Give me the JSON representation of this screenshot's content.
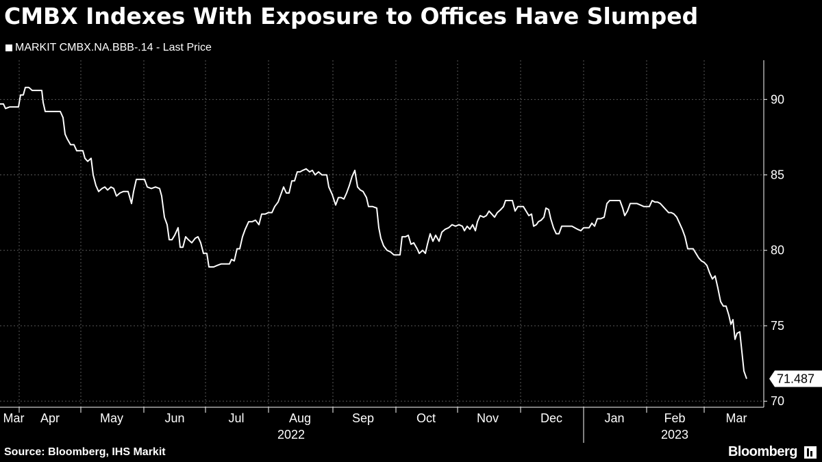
{
  "title": "CMBX Indexes With Exposure to Offices Have Slumped",
  "legend": {
    "label": "MARKIT CMBX.NA.BBB-.14 - Last Price"
  },
  "source": "Source: Bloomberg, IHS Markit",
  "brand": "Bloomberg",
  "colors": {
    "background": "#000000",
    "line": "#ffffff",
    "grid": "#5a5a5a"
  },
  "chart_data": {
    "type": "line",
    "title": "CMBX Indexes With Exposure to Offices Have Slumped",
    "series_name": "MARKIT CMBX.NA.BBB-.14 - Last Price",
    "ylim": [
      69.6,
      92.6
    ],
    "yticks": [
      70,
      75,
      80,
      85,
      90
    ],
    "ytick_labels": [
      "70",
      "75",
      "80",
      "85",
      "90"
    ],
    "xlim": [
      0,
      1115
    ],
    "grid": true,
    "last_value": 71.487,
    "last_value_label": "71.487",
    "month_labels": [
      {
        "label": "Mar",
        "x": 20
      },
      {
        "label": "Apr",
        "x": 73
      },
      {
        "label": "May",
        "x": 163
      },
      {
        "label": "Jun",
        "x": 255
      },
      {
        "label": "Jul",
        "x": 345
      },
      {
        "label": "Aug",
        "x": 438
      },
      {
        "label": "Sep",
        "x": 530
      },
      {
        "label": "Oct",
        "x": 622
      },
      {
        "label": "Nov",
        "x": 712
      },
      {
        "label": "Dec",
        "x": 805
      },
      {
        "label": "Jan",
        "x": 897
      },
      {
        "label": "Feb",
        "x": 985
      },
      {
        "label": "Mar",
        "x": 1075
      }
    ],
    "year_labels": [
      {
        "label": "2022",
        "x": 425
      },
      {
        "label": "2023",
        "x": 985
      }
    ],
    "month_boundaries": [
      28,
      118,
      210,
      300,
      392,
      486,
      578,
      668,
      760,
      852,
      944,
      1028
    ],
    "year_boundary": 852,
    "points": [
      [
        0,
        89.7
      ],
      [
        5,
        89.7
      ],
      [
        8,
        89.4
      ],
      [
        14,
        89.5
      ],
      [
        22,
        89.5
      ],
      [
        27,
        89.5
      ],
      [
        30,
        90.3
      ],
      [
        34,
        90.3
      ],
      [
        37,
        90.8
      ],
      [
        42,
        90.8
      ],
      [
        47,
        90.6
      ],
      [
        55,
        90.6
      ],
      [
        61,
        90.6
      ],
      [
        63,
        89.8
      ],
      [
        66,
        89.2
      ],
      [
        70,
        89.2
      ],
      [
        80,
        89.2
      ],
      [
        88,
        89.2
      ],
      [
        92,
        88.8
      ],
      [
        95,
        87.7
      ],
      [
        98,
        87.4
      ],
      [
        103,
        87.0
      ],
      [
        108,
        87.0
      ],
      [
        112,
        86.6
      ],
      [
        116,
        86.6
      ],
      [
        121,
        86.6
      ],
      [
        124,
        86.1
      ],
      [
        128,
        85.9
      ],
      [
        133,
        86.1
      ],
      [
        136,
        85.0
      ],
      [
        140,
        84.3
      ],
      [
        144,
        83.9
      ],
      [
        149,
        84.1
      ],
      [
        153,
        84.2
      ],
      [
        157,
        84.0
      ],
      [
        162,
        84.2
      ],
      [
        166,
        84.1
      ],
      [
        170,
        83.6
      ],
      [
        175,
        83.8
      ],
      [
        180,
        83.9
      ],
      [
        187,
        83.9
      ],
      [
        192,
        83.1
      ],
      [
        195,
        83.9
      ],
      [
        199,
        84.7
      ],
      [
        205,
        84.7
      ],
      [
        211,
        84.7
      ],
      [
        215,
        84.2
      ],
      [
        221,
        84.1
      ],
      [
        227,
        84.2
      ],
      [
        233,
        84.1
      ],
      [
        236,
        83.6
      ],
      [
        240,
        82.2
      ],
      [
        244,
        81.7
      ],
      [
        247,
        80.7
      ],
      [
        251,
        80.7
      ],
      [
        255,
        81.0
      ],
      [
        260,
        81.5
      ],
      [
        263,
        80.2
      ],
      [
        267,
        80.2
      ],
      [
        271,
        80.9
      ],
      [
        275,
        80.7
      ],
      [
        280,
        80.5
      ],
      [
        285,
        80.8
      ],
      [
        289,
        80.9
      ],
      [
        293,
        80.5
      ],
      [
        297,
        79.8
      ],
      [
        302,
        79.8
      ],
      [
        305,
        78.9
      ],
      [
        312,
        78.9
      ],
      [
        317,
        79.0
      ],
      [
        323,
        79.1
      ],
      [
        328,
        79.1
      ],
      [
        335,
        79.1
      ],
      [
        338,
        79.4
      ],
      [
        342,
        79.3
      ],
      [
        346,
        80.1
      ],
      [
        350,
        80.1
      ],
      [
        354,
        80.9
      ],
      [
        358,
        81.4
      ],
      [
        363,
        81.9
      ],
      [
        368,
        81.9
      ],
      [
        373,
        82.0
      ],
      [
        378,
        81.7
      ],
      [
        382,
        82.4
      ],
      [
        387,
        82.4
      ],
      [
        392,
        82.5
      ],
      [
        397,
        82.5
      ],
      [
        401,
        82.9
      ],
      [
        406,
        83.2
      ],
      [
        410,
        83.7
      ],
      [
        414,
        84.2
      ],
      [
        418,
        83.8
      ],
      [
        422,
        83.8
      ],
      [
        426,
        84.6
      ],
      [
        430,
        84.6
      ],
      [
        434,
        85.2
      ],
      [
        438,
        85.2
      ],
      [
        442,
        85.3
      ],
      [
        447,
        85.4
      ],
      [
        452,
        85.2
      ],
      [
        456,
        85.3
      ],
      [
        460,
        85.0
      ],
      [
        465,
        85.2
      ],
      [
        470,
        85.0
      ],
      [
        477,
        85.0
      ],
      [
        480,
        84.2
      ],
      [
        485,
        83.7
      ],
      [
        490,
        83.0
      ],
      [
        494,
        83.5
      ],
      [
        498,
        83.5
      ],
      [
        502,
        83.4
      ],
      [
        506,
        83.8
      ],
      [
        510,
        84.3
      ],
      [
        514,
        84.9
      ],
      [
        518,
        85.3
      ],
      [
        522,
        84.2
      ],
      [
        526,
        84.0
      ],
      [
        530,
        83.9
      ],
      [
        535,
        83.5
      ],
      [
        538,
        82.9
      ],
      [
        544,
        82.9
      ],
      [
        550,
        82.8
      ],
      [
        553,
        81.5
      ],
      [
        556,
        80.8
      ],
      [
        560,
        80.3
      ],
      [
        565,
        80.0
      ],
      [
        570,
        79.9
      ],
      [
        575,
        79.7
      ],
      [
        580,
        79.7
      ],
      [
        584,
        79.7
      ],
      [
        587,
        80.9
      ],
      [
        592,
        80.9
      ],
      [
        596,
        81.0
      ],
      [
        600,
        80.4
      ],
      [
        604,
        80.5
      ],
      [
        609,
        80.1
      ],
      [
        612,
        79.8
      ],
      [
        617,
        80.0
      ],
      [
        621,
        79.8
      ],
      [
        624,
        80.4
      ],
      [
        628,
        81.1
      ],
      [
        632,
        80.6
      ],
      [
        636,
        81.0
      ],
      [
        641,
        80.6
      ],
      [
        645,
        81.2
      ],
      [
        650,
        81.4
      ],
      [
        655,
        81.5
      ],
      [
        660,
        81.7
      ],
      [
        665,
        81.6
      ],
      [
        670,
        81.7
      ],
      [
        675,
        81.6
      ],
      [
        678,
        81.3
      ],
      [
        682,
        81.6
      ],
      [
        686,
        81.4
      ],
      [
        690,
        81.7
      ],
      [
        694,
        81.3
      ],
      [
        697,
        81.9
      ],
      [
        701,
        82.3
      ],
      [
        706,
        82.2
      ],
      [
        710,
        82.3
      ],
      [
        714,
        82.6
      ],
      [
        718,
        82.4
      ],
      [
        722,
        82.2
      ],
      [
        726,
        82.5
      ],
      [
        731,
        82.7
      ],
      [
        735,
        82.9
      ],
      [
        738,
        83.3
      ],
      [
        743,
        83.3
      ],
      [
        748,
        83.3
      ],
      [
        752,
        82.6
      ],
      [
        756,
        82.9
      ],
      [
        760,
        82.9
      ],
      [
        764,
        82.9
      ],
      [
        768,
        82.6
      ],
      [
        772,
        82.3
      ],
      [
        776,
        82.4
      ],
      [
        779,
        81.6
      ],
      [
        783,
        81.7
      ],
      [
        786,
        81.9
      ],
      [
        790,
        82.0
      ],
      [
        794,
        82.2
      ],
      [
        797,
        82.8
      ],
      [
        801,
        82.7
      ],
      [
        804,
        82.1
      ],
      [
        808,
        81.5
      ],
      [
        812,
        81.1
      ],
      [
        816,
        81.1
      ],
      [
        820,
        81.6
      ],
      [
        825,
        81.6
      ],
      [
        830,
        81.6
      ],
      [
        835,
        81.6
      ],
      [
        839,
        81.5
      ],
      [
        843,
        81.4
      ],
      [
        848,
        81.3
      ],
      [
        852,
        81.5
      ],
      [
        856,
        81.5
      ],
      [
        860,
        81.5
      ],
      [
        864,
        81.8
      ],
      [
        868,
        81.6
      ],
      [
        872,
        82.1
      ],
      [
        877,
        82.1
      ],
      [
        882,
        82.2
      ],
      [
        886,
        83.1
      ],
      [
        890,
        83.3
      ],
      [
        895,
        83.3
      ],
      [
        900,
        83.3
      ],
      [
        905,
        83.3
      ],
      [
        909,
        82.8
      ],
      [
        912,
        82.3
      ],
      [
        916,
        82.6
      ],
      [
        920,
        83.1
      ],
      [
        925,
        83.1
      ],
      [
        930,
        83.1
      ],
      [
        935,
        83.0
      ],
      [
        940,
        82.9
      ],
      [
        944,
        82.9
      ],
      [
        948,
        82.9
      ],
      [
        952,
        83.3
      ],
      [
        956,
        83.2
      ],
      [
        960,
        83.2
      ],
      [
        964,
        83.1
      ],
      [
        968,
        82.9
      ],
      [
        972,
        82.7
      ],
      [
        976,
        82.5
      ],
      [
        980,
        82.5
      ],
      [
        984,
        82.4
      ],
      [
        988,
        82.2
      ],
      [
        992,
        81.8
      ],
      [
        996,
        81.4
      ],
      [
        1000,
        80.9
      ],
      [
        1004,
        80.1
      ],
      [
        1008,
        80.1
      ],
      [
        1012,
        80.1
      ],
      [
        1016,
        79.8
      ],
      [
        1020,
        79.5
      ],
      [
        1024,
        79.3
      ],
      [
        1028,
        79.2
      ],
      [
        1032,
        79.0
      ],
      [
        1036,
        78.5
      ],
      [
        1040,
        78.1
      ],
      [
        1044,
        78.3
      ],
      [
        1048,
        77.5
      ],
      [
        1052,
        76.6
      ],
      [
        1056,
        76.3
      ],
      [
        1060,
        76.3
      ],
      [
        1064,
        75.7
      ],
      [
        1067,
        75.1
      ],
      [
        1070,
        75.4
      ],
      [
        1073,
        74.1
      ],
      [
        1076,
        74.5
      ],
      [
        1080,
        74.6
      ],
      [
        1083,
        73.3
      ],
      [
        1086,
        72.0
      ],
      [
        1090,
        71.487
      ]
    ]
  }
}
